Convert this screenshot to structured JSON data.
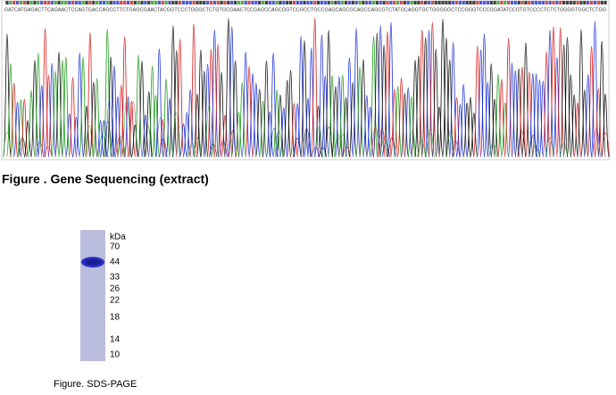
{
  "sequencing": {
    "sequence": "GATCATGAGACTTCAGAACTCCAGTGACCAGCCTTCTGAGCGAACTACGGTCCCTGGGCTCTGTGCGAACTCCGAGCCAGCGGTCCGCCTGCCGAGCAGCGCAGCCAGCGTCTATGCAGGTGCTGGGGGCTCCGGGTCCCGGATATCCGTGTCCCCTCTCTGGGGTGGCTCTGG",
    "caption": "Figure . Gene Sequencing (extract)"
  },
  "gel": {
    "unit": "kDa",
    "markers": [
      70,
      44,
      33,
      26,
      22,
      18,
      14,
      10
    ],
    "caption": "Figure. SDS-PAGE"
  }
}
